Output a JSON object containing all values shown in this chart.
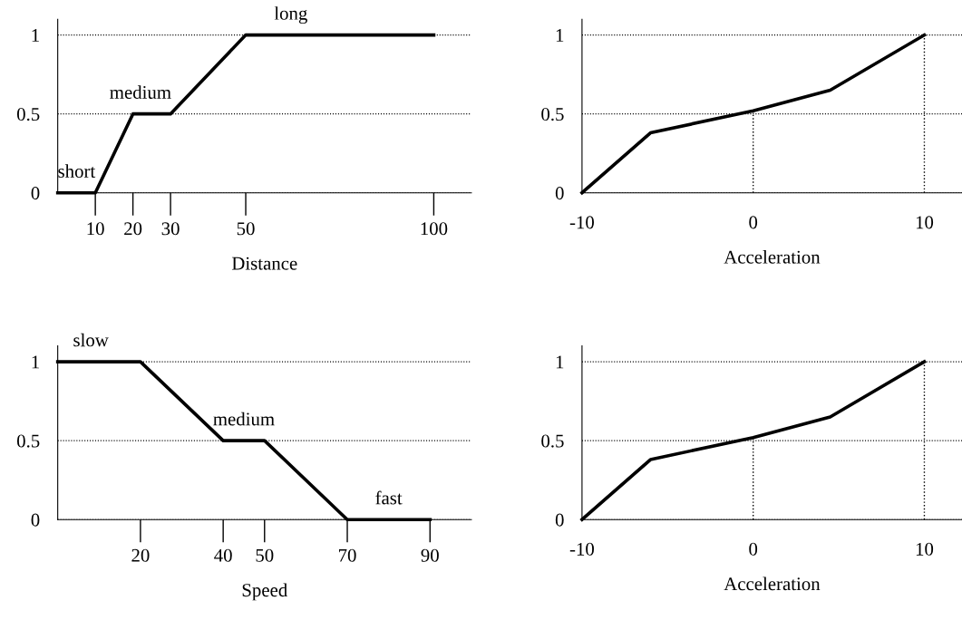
{
  "chart_data": [
    {
      "type": "line",
      "xlabel": "Distance",
      "x": [
        0,
        10,
        20,
        30,
        50,
        100
      ],
      "series": [
        {
          "color": "#000000",
          "values": [
            0,
            0,
            0.5,
            0.5,
            1,
            1
          ]
        }
      ],
      "xlim": [
        0,
        110
      ],
      "ylim": [
        0,
        1.1
      ],
      "xticks": [
        10,
        20,
        30,
        50,
        100
      ],
      "yticks": [
        0,
        0.5,
        1
      ],
      "grid": "y",
      "line_style": "solid",
      "marker": "none",
      "annotations": [
        {
          "text": "short",
          "x": 5,
          "y": 0
        },
        {
          "text": "medium",
          "x": 22,
          "y": 0.5
        },
        {
          "text": "long",
          "x": 62,
          "y": 1
        }
      ]
    },
    {
      "type": "line",
      "xlabel": "Acceleration",
      "x": [
        -10,
        -6,
        0,
        4.5,
        10
      ],
      "series": [
        {
          "color": "#000000",
          "values": [
            0,
            0.38,
            0.52,
            0.65,
            1
          ]
        }
      ],
      "xlim": [
        -10,
        12.2
      ],
      "ylim": [
        0,
        1.1
      ],
      "xticks": [
        -10,
        0,
        10
      ],
      "yticks": [
        0,
        0.5,
        1
      ],
      "grid": "y",
      "line_style": "solid",
      "marker": "none",
      "ref_lines": [
        {
          "axis": "x",
          "value": 0,
          "line_style": "dotted"
        },
        {
          "axis": "x",
          "value": 10,
          "line_style": "dotted"
        }
      ]
    },
    {
      "type": "line",
      "xlabel": "Speed",
      "x": [
        0,
        20,
        40,
        50,
        70,
        90
      ],
      "series": [
        {
          "color": "#000000",
          "values": [
            1,
            1,
            0.5,
            0.5,
            0,
            0
          ]
        }
      ],
      "xlim": [
        0,
        100
      ],
      "ylim": [
        0,
        1.1
      ],
      "xticks": [
        20,
        40,
        50,
        70,
        90
      ],
      "yticks": [
        0,
        0.5,
        1
      ],
      "grid": "y",
      "line_style": "solid",
      "marker": "none",
      "annotations": [
        {
          "text": "slow",
          "x": 8,
          "y": 1
        },
        {
          "text": "medium",
          "x": 45,
          "y": 0.5
        },
        {
          "text": "fast",
          "x": 80,
          "y": 0
        }
      ]
    },
    {
      "type": "line",
      "xlabel": "Acceleration",
      "x": [
        -10,
        -6,
        0,
        4.5,
        10
      ],
      "series": [
        {
          "color": "#000000",
          "values": [
            0,
            0.38,
            0.52,
            0.65,
            1
          ]
        }
      ],
      "xlim": [
        -10,
        12.2
      ],
      "ylim": [
        0,
        1.1
      ],
      "xticks": [
        -10,
        0,
        10
      ],
      "yticks": [
        0,
        0.5,
        1
      ],
      "grid": "y",
      "line_style": "solid",
      "marker": "none",
      "ref_lines": [
        {
          "axis": "x",
          "value": 0,
          "line_style": "dotted"
        },
        {
          "axis": "x",
          "value": 10,
          "line_style": "dotted"
        }
      ]
    }
  ]
}
